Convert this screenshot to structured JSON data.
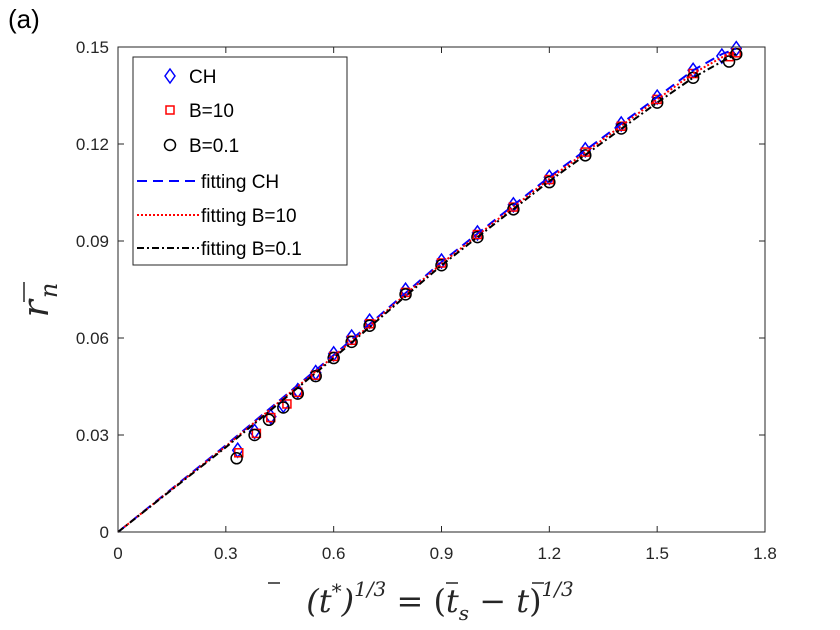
{
  "panel_label": "(a)",
  "chart_data": {
    "type": "scatter",
    "title": "",
    "xlabel": "(t̄*)^{1/3} = (t̄_s − t̄)^{1/3}",
    "ylabel": "r̄_n",
    "xlim": [
      0,
      1.8
    ],
    "ylim": [
      0,
      0.15
    ],
    "xticks": [
      "0",
      "0.3",
      "0.6",
      "0.9",
      "1.2",
      "1.5",
      "1.8"
    ],
    "yticks": [
      "0",
      "0.03",
      "0.06",
      "0.09",
      "0.12",
      "0.15"
    ],
    "grid": false,
    "legend_position": "top-left",
    "series": [
      {
        "name": "CH",
        "kind": "marker",
        "marker": "diamond",
        "color": "#0000ff",
        "x": [
          0.333,
          0.38,
          0.425,
          0.46,
          0.5,
          0.55,
          0.6,
          0.65,
          0.7,
          0.8,
          0.9,
          1.0,
          1.1,
          1.2,
          1.3,
          1.4,
          1.5,
          1.6,
          1.68,
          1.72
        ],
        "y": [
          0.0253,
          0.0311,
          0.0357,
          0.0392,
          0.0437,
          0.0493,
          0.0551,
          0.0603,
          0.0652,
          0.0748,
          0.0838,
          0.0925,
          0.1012,
          0.1097,
          0.1182,
          0.1262,
          0.1345,
          0.1428,
          0.1472,
          0.1495
        ]
      },
      {
        "name": "B=10",
        "kind": "marker",
        "marker": "square",
        "color": "#ff0000",
        "x": [
          0.336,
          0.385,
          0.425,
          0.47,
          0.5,
          0.55,
          0.6,
          0.65,
          0.7,
          0.8,
          0.9,
          1.0,
          1.1,
          1.2,
          1.3,
          1.4,
          1.5,
          1.6,
          1.7,
          1.72
        ],
        "y": [
          0.0245,
          0.0305,
          0.0354,
          0.0396,
          0.0432,
          0.0485,
          0.0543,
          0.0593,
          0.0644,
          0.0741,
          0.0832,
          0.092,
          0.1005,
          0.109,
          0.1175,
          0.1255,
          0.1338,
          0.1418,
          0.147,
          0.1482
        ]
      },
      {
        "name": "B=0.1",
        "kind": "marker",
        "marker": "circle",
        "color": "#000000",
        "x": [
          0.33,
          0.38,
          0.42,
          0.46,
          0.5,
          0.55,
          0.6,
          0.65,
          0.7,
          0.8,
          0.9,
          1.0,
          1.1,
          1.2,
          1.3,
          1.4,
          1.5,
          1.6,
          1.7,
          1.72
        ],
        "y": [
          0.0228,
          0.03,
          0.0347,
          0.0385,
          0.0428,
          0.0482,
          0.0538,
          0.0588,
          0.0638,
          0.0735,
          0.0825,
          0.0912,
          0.0998,
          0.1082,
          0.1165,
          0.1248,
          0.1328,
          0.1405,
          0.1455,
          0.1478
        ]
      },
      {
        "name": "fitting CH",
        "kind": "line",
        "style": "dashed",
        "color": "#0000ff",
        "x": [
          0,
          0.3,
          0.6,
          0.9,
          1.2,
          1.5,
          1.6,
          1.68,
          1.72
        ],
        "y": [
          0,
          0.0268,
          0.0547,
          0.0835,
          0.1098,
          0.1345,
          0.1428,
          0.1478,
          0.1495
        ]
      },
      {
        "name": "fitting B=10",
        "kind": "line",
        "style": "dotted",
        "color": "#ff0000",
        "x": [
          0,
          0.3,
          0.6,
          0.9,
          1.2,
          1.5,
          1.6,
          1.68,
          1.72
        ],
        "y": [
          0,
          0.0265,
          0.0543,
          0.083,
          0.1092,
          0.1338,
          0.1418,
          0.1468,
          0.1485
        ]
      },
      {
        "name": "fitting B=0.1",
        "kind": "line",
        "style": "dashdot",
        "color": "#000000",
        "x": [
          0,
          0.3,
          0.6,
          0.9,
          1.2,
          1.5,
          1.6,
          1.68,
          1.72
        ],
        "y": [
          0,
          0.0262,
          0.0538,
          0.0825,
          0.1085,
          0.1328,
          0.1405,
          0.1455,
          0.1478
        ]
      }
    ]
  }
}
